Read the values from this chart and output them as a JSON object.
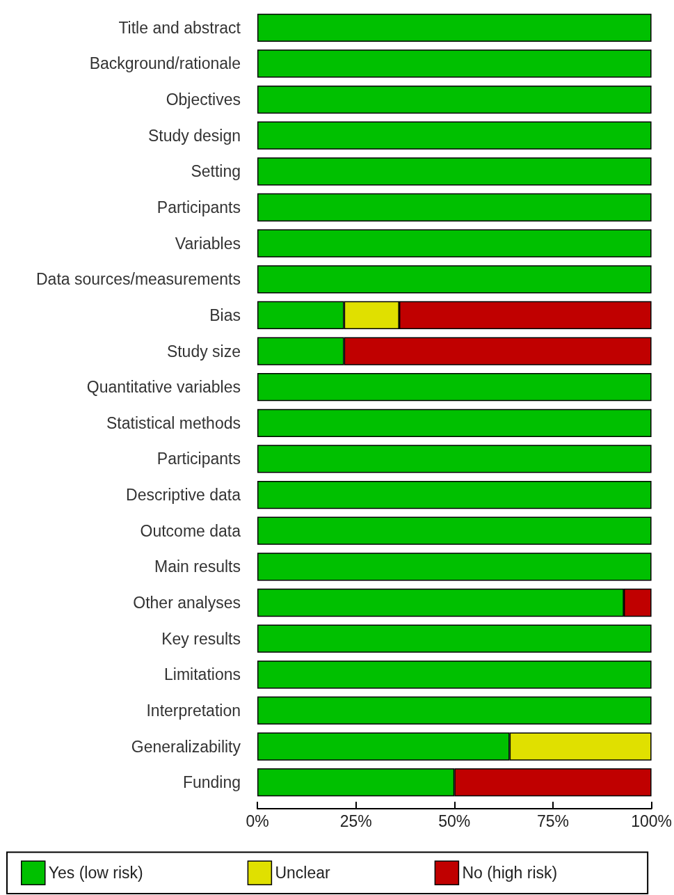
{
  "chart_data": {
    "type": "bar",
    "orientation": "horizontal",
    "stacked": true,
    "categories": [
      "Title and abstract",
      "Background/rationale",
      "Objectives",
      "Study design",
      "Setting",
      "Participants",
      "Variables",
      "Data sources/measurements",
      "Bias",
      "Study size",
      "Quantitative variables",
      "Statistical methods",
      "Participants",
      "Descriptive data",
      "Outcome data",
      "Main results",
      "Other analyses",
      "Key results",
      "Limitations",
      "Interpretation",
      "Generalizability",
      "Funding"
    ],
    "series": [
      {
        "name": "Yes (low risk)",
        "color": "#00c000",
        "values": [
          100,
          100,
          100,
          100,
          100,
          100,
          100,
          100,
          22,
          22,
          100,
          100,
          100,
          100,
          100,
          100,
          93,
          100,
          100,
          100,
          64,
          50
        ]
      },
      {
        "name": "Unclear",
        "color": "#e0e000",
        "values": [
          null,
          null,
          null,
          null,
          null,
          null,
          null,
          null,
          14,
          null,
          null,
          null,
          null,
          null,
          null,
          null,
          null,
          null,
          null,
          null,
          36,
          null
        ]
      },
      {
        "name": "No (high risk)",
        "color": "#c00000",
        "values": [
          null,
          null,
          null,
          null,
          null,
          null,
          null,
          null,
          64,
          78,
          null,
          null,
          null,
          null,
          null,
          null,
          7,
          null,
          null,
          null,
          null,
          50
        ]
      }
    ],
    "xlim": [
      0,
      100
    ],
    "xticks": [
      {
        "value": 0,
        "label": "0%"
      },
      {
        "value": 25,
        "label": "25%"
      },
      {
        "value": 50,
        "label": "50%"
      },
      {
        "value": 75,
        "label": "75%"
      },
      {
        "value": 100,
        "label": "100%"
      }
    ],
    "grid": false,
    "legend": "bottom"
  }
}
